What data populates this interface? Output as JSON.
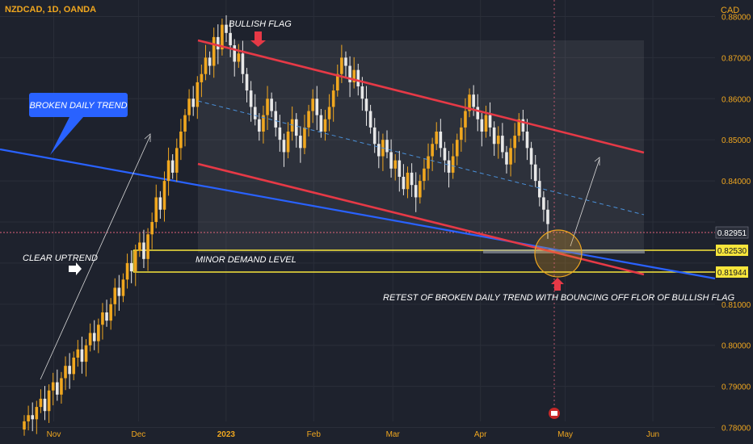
{
  "header": {
    "ticker": "NZDCAD, 1D, OANDA",
    "currency": "CAD"
  },
  "annotations": {
    "bullish_flag": "BULLISH FLAG",
    "broken_trend": "BROKEN DAILY TREND",
    "clear_uptrend": "CLEAR UPTREND",
    "minor_demand": "MINOR DEMAND LEVEL",
    "retest": "RETEST OF BROKEN DAILY TREND WITH BOUNCING OFF FLOR OF BULLISH FLAG"
  },
  "price_labels": {
    "last": "0.82951",
    "upper_level": "0.82530",
    "lower_level": "0.81944"
  },
  "chart_data": {
    "type": "candlestick",
    "title": "NZDCAD, 1D, OANDA",
    "ylabel": "CAD",
    "ylim": [
      0.775,
      0.885
    ],
    "y_ticks": [
      "0.88000",
      "0.87000",
      "0.86000",
      "0.85000",
      "0.84000",
      "0.83000",
      "0.82000",
      "0.81000",
      "0.80000",
      "0.79000",
      "0.78000"
    ],
    "x_ticks": [
      "Nov",
      "Dec",
      "2023",
      "Feb",
      "Mar",
      "Apr",
      "May",
      "Jun"
    ],
    "x_range": [
      "2022-10-13",
      "2023-06-23"
    ],
    "last_price": 0.82951,
    "levels": [
      {
        "value": 0.8253,
        "color": "#f7e53b"
      },
      {
        "value": 0.81944,
        "color": "#f7e53b"
      }
    ],
    "trendlines": [
      {
        "name": "BROKEN DAILY TREND",
        "color": "#2962ff",
        "points": [
          [
            "2022-10-13",
            0.8534
          ],
          [
            "2023-06-23",
            0.8208
          ]
        ]
      },
      {
        "name": "flag-top",
        "color": "#e63946",
        "points": [
          [
            "2022-12-11",
            0.8818
          ],
          [
            "2023-05-20",
            0.8512
          ]
        ]
      },
      {
        "name": "flag-bottom",
        "color": "#e63946",
        "points": [
          [
            "2022-12-11",
            0.8487
          ],
          [
            "2023-05-20",
            0.8188
          ]
        ]
      },
      {
        "name": "flag-mid",
        "color": "#4a90d9",
        "points": [
          [
            "2022-12-11",
            0.8652
          ],
          [
            "2023-05-20",
            0.835
          ]
        ]
      }
    ],
    "candles_close": [
      0.7815,
      0.783,
      0.782,
      0.785,
      0.787,
      0.784,
      0.789,
      0.791,
      0.788,
      0.792,
      0.795,
      0.793,
      0.797,
      0.799,
      0.796,
      0.8,
      0.803,
      0.801,
      0.805,
      0.808,
      0.806,
      0.81,
      0.814,
      0.812,
      0.816,
      0.82,
      0.818,
      0.823,
      0.825,
      0.821,
      0.827,
      0.83,
      0.836,
      0.833,
      0.84,
      0.845,
      0.842,
      0.848,
      0.852,
      0.856,
      0.86,
      0.858,
      0.864,
      0.866,
      0.87,
      0.868,
      0.875,
      0.872,
      0.878,
      0.876,
      0.873,
      0.869,
      0.871,
      0.866,
      0.862,
      0.858,
      0.855,
      0.852,
      0.856,
      0.86,
      0.857,
      0.853,
      0.85,
      0.847,
      0.852,
      0.855,
      0.851,
      0.848,
      0.853,
      0.857,
      0.86,
      0.856,
      0.852,
      0.855,
      0.858,
      0.862,
      0.866,
      0.87,
      0.868,
      0.864,
      0.867,
      0.863,
      0.86,
      0.857,
      0.853,
      0.849,
      0.846,
      0.85,
      0.847,
      0.843,
      0.845,
      0.841,
      0.838,
      0.842,
      0.839,
      0.836,
      0.84,
      0.843,
      0.846,
      0.849,
      0.852,
      0.848,
      0.845,
      0.842,
      0.846,
      0.85,
      0.853,
      0.857,
      0.861,
      0.858,
      0.855,
      0.852,
      0.856,
      0.853,
      0.849,
      0.851,
      0.847,
      0.844,
      0.848,
      0.851,
      0.855,
      0.852,
      0.848,
      0.844,
      0.84,
      0.836,
      0.833,
      0.8295
    ]
  }
}
